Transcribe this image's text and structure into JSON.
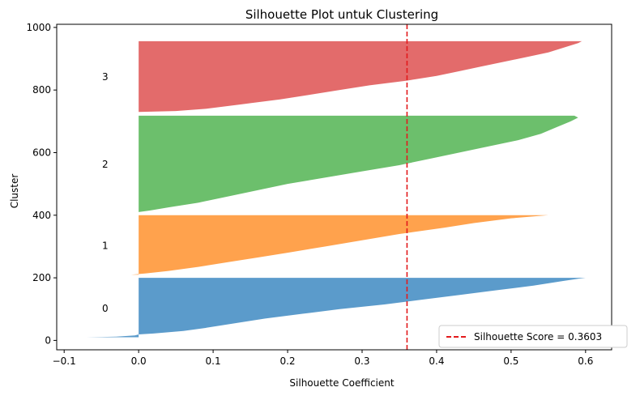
{
  "chart_data": {
    "type": "area",
    "title": "Silhouette Plot untuk Clustering",
    "xlabel": "Silhouette Coefficient",
    "ylabel": "Cluster",
    "xlim": [
      -0.11,
      0.635
    ],
    "ylim": [
      -30,
      1010
    ],
    "xticks": [
      -0.1,
      0.0,
      0.1,
      0.2,
      0.3,
      0.4,
      0.5,
      0.6
    ],
    "xtick_labels": [
      "−0.1",
      "0.0",
      "0.1",
      "0.2",
      "0.3",
      "0.4",
      "0.5",
      "0.6"
    ],
    "yticks": [
      0,
      200,
      400,
      600,
      800,
      1000
    ],
    "ytick_labels": [
      "0",
      "200",
      "400",
      "600",
      "800",
      "1000"
    ],
    "grid": false,
    "legend_position": "lower-right",
    "reference_line": {
      "x": 0.3603,
      "label": "Silhouette Score = 0.3603",
      "color": "#e31a1c",
      "style": "dashed"
    },
    "series": [
      {
        "name": "0",
        "color": "#5b9bcb",
        "y_start": 10,
        "y_end": 200,
        "profile": [
          [
            10,
            -0.07
          ],
          [
            12,
            -0.03
          ],
          [
            16,
            -0.005
          ],
          [
            19,
            0.0
          ],
          [
            22,
            0.02
          ],
          [
            30,
            0.06
          ],
          [
            40,
            0.09
          ],
          [
            55,
            0.13
          ],
          [
            70,
            0.17
          ],
          [
            85,
            0.22
          ],
          [
            100,
            0.27
          ],
          [
            115,
            0.33
          ],
          [
            130,
            0.38
          ],
          [
            145,
            0.43
          ],
          [
            160,
            0.48
          ],
          [
            175,
            0.53
          ],
          [
            190,
            0.57
          ],
          [
            197,
            0.59
          ],
          [
            200,
            0.6
          ]
        ]
      },
      {
        "name": "1",
        "color": "#ffa24d",
        "y_start": 210,
        "y_end": 400,
        "profile": [
          [
            210,
            -0.01
          ],
          [
            214,
            0.01
          ],
          [
            222,
            0.04
          ],
          [
            235,
            0.08
          ],
          [
            250,
            0.12
          ],
          [
            265,
            0.16
          ],
          [
            280,
            0.2
          ],
          [
            300,
            0.25
          ],
          [
            320,
            0.3
          ],
          [
            340,
            0.35
          ],
          [
            360,
            0.41
          ],
          [
            375,
            0.45
          ],
          [
            390,
            0.5
          ],
          [
            400,
            0.55
          ]
        ]
      },
      {
        "name": "2",
        "color": "#6cbf6c",
        "y_start": 410,
        "y_end": 720,
        "profile": [
          [
            410,
            0.0
          ],
          [
            415,
            0.015
          ],
          [
            425,
            0.04
          ],
          [
            440,
            0.08
          ],
          [
            460,
            0.12
          ],
          [
            480,
            0.16
          ],
          [
            500,
            0.2
          ],
          [
            520,
            0.25
          ],
          [
            540,
            0.3
          ],
          [
            560,
            0.35
          ],
          [
            580,
            0.39
          ],
          [
            600,
            0.43
          ],
          [
            620,
            0.47
          ],
          [
            640,
            0.51
          ],
          [
            660,
            0.54
          ],
          [
            680,
            0.56
          ],
          [
            700,
            0.58
          ],
          [
            712,
            0.59
          ],
          [
            718,
            0.585
          ]
        ]
      },
      {
        "name": "3",
        "color": "#e36b6b",
        "y_start": 730,
        "y_end": 960,
        "profile": [
          [
            730,
            0.0
          ],
          [
            733,
            0.05
          ],
          [
            740,
            0.09
          ],
          [
            755,
            0.14
          ],
          [
            770,
            0.19
          ],
          [
            785,
            0.23
          ],
          [
            800,
            0.27
          ],
          [
            815,
            0.31
          ],
          [
            830,
            0.36
          ],
          [
            845,
            0.4
          ],
          [
            860,
            0.43
          ],
          [
            875,
            0.46
          ],
          [
            890,
            0.49
          ],
          [
            905,
            0.52
          ],
          [
            920,
            0.55
          ],
          [
            935,
            0.57
          ],
          [
            950,
            0.59
          ],
          [
            956,
            0.595
          ]
        ]
      }
    ]
  }
}
